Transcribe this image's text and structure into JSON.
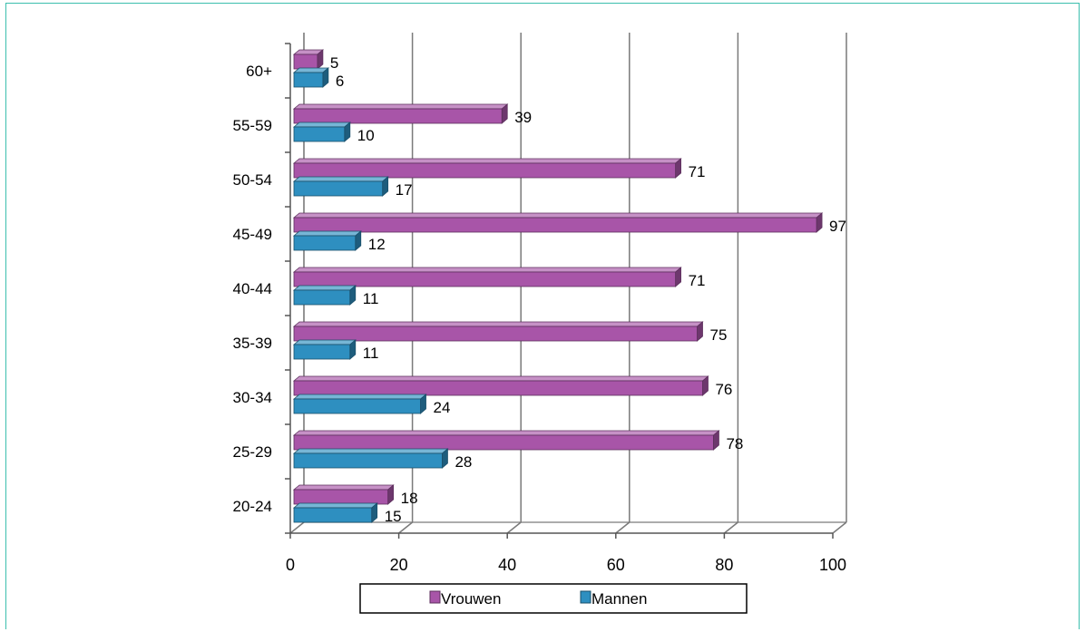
{
  "chart_data": {
    "type": "bar",
    "orientation": "horizontal",
    "style": "3d",
    "categories": [
      "20-24",
      "25-29",
      "30-34",
      "35-39",
      "40-44",
      "45-49",
      "50-54",
      "55-59",
      "60+"
    ],
    "series": [
      {
        "name": "Vrouwen",
        "color": "#a855a8",
        "values": [
          18,
          78,
          76,
          75,
          71,
          97,
          71,
          39,
          5
        ]
      },
      {
        "name": "Mannen",
        "color": "#2e8fc0",
        "values": [
          15,
          28,
          24,
          11,
          11,
          12,
          17,
          10,
          6
        ]
      }
    ],
    "xlim": [
      0,
      100
    ],
    "xticks": [
      "0",
      "20",
      "40",
      "60",
      "80",
      "100"
    ],
    "grid": true,
    "legend_position": "bottom"
  }
}
